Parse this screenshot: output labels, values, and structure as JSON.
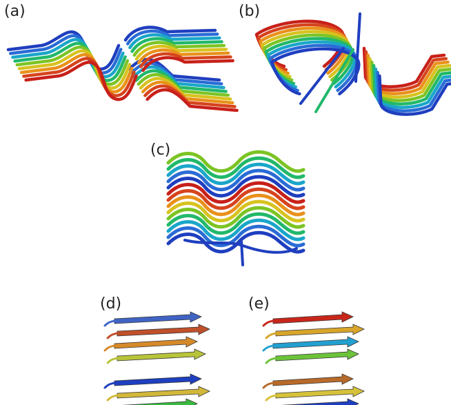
{
  "panels": [
    {
      "id": "a",
      "label": "(a)"
    },
    {
      "id": "b",
      "label": "(b)"
    },
    {
      "id": "c",
      "label": "(c)"
    },
    {
      "id": "d",
      "label": "(d)"
    },
    {
      "id": "e",
      "label": "(e)"
    }
  ],
  "ribbon_palette": [
    "#1f3fbf",
    "#2a6cd6",
    "#1aa6c9",
    "#22b86a",
    "#7cc424",
    "#d8c21f",
    "#e9911b",
    "#d6441d",
    "#c8201a"
  ],
  "stack_d_colors": [
    "#3f64c4",
    "#c0502a",
    "#d68a2a",
    "#b8c43a",
    "#1e3fbf",
    "#d2b83a",
    "#3ab840"
  ],
  "stack_e_colors": [
    "#c8261a",
    "#d8a52a",
    "#22a0d0",
    "#6cc33a",
    "#b86a2a",
    "#d6c23a",
    "#1e3fbf",
    "#2ac0a8"
  ]
}
